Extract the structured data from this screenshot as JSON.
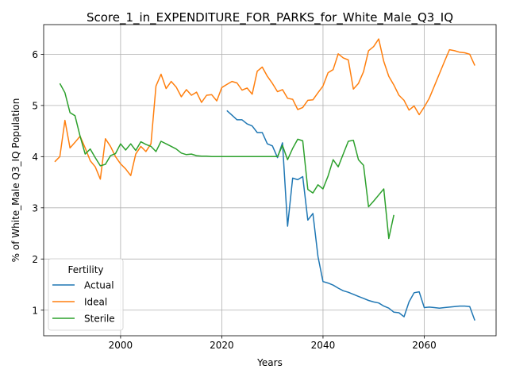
{
  "chart_data": {
    "type": "line",
    "title": "Score_1_in_EXPENDITURE_FOR_PARKS_for_White_Male_Q3_IQ",
    "xlabel": "Years",
    "ylabel": "% of White_Male Q3_IQ Population",
    "xlim": [
      1984.8,
      2074.2
    ],
    "ylim": [
      0.5,
      6.58
    ],
    "x_ticks": [
      2000,
      2020,
      2040,
      2060
    ],
    "y_ticks": [
      1,
      2,
      3,
      4,
      5,
      6
    ],
    "grid": true,
    "legend": {
      "title": "Fertility",
      "placement": "lower-left"
    },
    "series": [
      {
        "name": "Actual",
        "color": "#1f77b4",
        "x": [
          2021,
          2022,
          2023,
          2024,
          2025,
          2026,
          2027,
          2028,
          2029,
          2030,
          2031,
          2032,
          2033,
          2034,
          2035,
          2036,
          2037,
          2038,
          2039,
          2040,
          2041,
          2042,
          2043,
          2044,
          2045,
          2046,
          2047,
          2048,
          2049,
          2050,
          2051,
          2052,
          2053,
          2054,
          2055,
          2056,
          2057,
          2058,
          2059,
          2060,
          2061,
          2062,
          2063,
          2064,
          2065,
          2066,
          2067,
          2068,
          2069,
          2070
        ],
        "y": [
          4.9,
          4.81,
          4.72,
          4.72,
          4.64,
          4.6,
          4.47,
          4.47,
          4.25,
          4.21,
          3.98,
          4.27,
          2.64,
          3.58,
          3.55,
          3.61,
          2.76,
          2.89,
          2.05,
          1.56,
          1.53,
          1.49,
          1.43,
          1.38,
          1.35,
          1.31,
          1.27,
          1.23,
          1.19,
          1.16,
          1.14,
          1.08,
          1.04,
          0.96,
          0.95,
          0.87,
          1.16,
          1.34,
          1.36,
          1.05,
          1.06,
          1.05,
          1.04,
          1.05,
          1.06,
          1.07,
          1.08,
          1.08,
          1.07,
          0.8
        ]
      },
      {
        "name": "Ideal",
        "color": "#ff7f0e",
        "x": [
          1987,
          1988,
          1989,
          1990,
          1991,
          1992,
          1993,
          1994,
          1995,
          1996,
          1997,
          1998,
          1999,
          2000,
          2001,
          2002,
          2003,
          2004,
          2005,
          2006,
          2007,
          2008,
          2009,
          2010,
          2011,
          2012,
          2013,
          2014,
          2015,
          2016,
          2017,
          2018,
          2019,
          2020,
          2021,
          2022,
          2023,
          2024,
          2025,
          2026,
          2027,
          2028,
          2029,
          2030,
          2031,
          2032,
          2033,
          2034,
          2035,
          2036,
          2037,
          2038,
          2039,
          2040,
          2041,
          2042,
          2043,
          2044,
          2045,
          2046,
          2047,
          2048,
          2049,
          2050,
          2051,
          2052,
          2053,
          2054,
          2055,
          2056,
          2057,
          2058,
          2059,
          2060,
          2061,
          2062,
          2063,
          2064,
          2065,
          2066,
          2067,
          2068,
          2069,
          2070
        ],
        "y": [
          3.9,
          4.0,
          4.71,
          4.17,
          4.28,
          4.4,
          4.17,
          3.92,
          3.8,
          3.56,
          4.35,
          4.2,
          4.0,
          3.86,
          3.76,
          3.63,
          4.05,
          4.2,
          4.1,
          4.25,
          5.38,
          5.61,
          5.33,
          5.47,
          5.36,
          5.17,
          5.31,
          5.2,
          5.26,
          5.06,
          5.2,
          5.21,
          5.09,
          5.35,
          5.41,
          5.47,
          5.44,
          5.3,
          5.34,
          5.22,
          5.67,
          5.75,
          5.57,
          5.43,
          5.27,
          5.31,
          5.14,
          5.12,
          4.92,
          4.96,
          5.1,
          5.11,
          5.25,
          5.38,
          5.64,
          5.7,
          6.01,
          5.93,
          5.89,
          5.32,
          5.43,
          5.66,
          6.07,
          6.15,
          6.3,
          5.86,
          5.57,
          5.4,
          5.2,
          5.1,
          4.91,
          4.99,
          4.82,
          4.97,
          5.14,
          5.38,
          5.62,
          5.86,
          6.09,
          6.07,
          6.04,
          6.03,
          6.0,
          5.78
        ]
      },
      {
        "name": "Sterile",
        "color": "#2ca02c",
        "x": [
          1988,
          1989,
          1990,
          1991,
          1992,
          1993,
          1994,
          1995,
          1996,
          1997,
          1998,
          1999,
          2000,
          2001,
          2002,
          2003,
          2004,
          2005,
          2006,
          2007,
          2008,
          2009,
          2010,
          2011,
          2012,
          2013,
          2014,
          2015,
          2016,
          2017,
          2018,
          2019,
          2020,
          2021,
          2022,
          2023,
          2024,
          2025,
          2026,
          2027,
          2028,
          2029,
          2030,
          2031,
          2032,
          2033,
          2034,
          2035,
          2036,
          2037,
          2038,
          2039,
          2040,
          2041,
          2042,
          2043,
          2044,
          2045,
          2046,
          2047,
          2048,
          2049,
          2050,
          2051,
          2052,
          2053,
          2054
        ],
        "y": [
          5.43,
          5.25,
          4.86,
          4.8,
          4.4,
          4.05,
          4.15,
          3.98,
          3.82,
          3.85,
          4.02,
          4.06,
          4.25,
          4.13,
          4.25,
          4.12,
          4.29,
          4.24,
          4.2,
          4.1,
          4.3,
          4.25,
          4.2,
          4.15,
          4.07,
          4.04,
          4.05,
          4.02,
          4.01,
          4.01,
          4.0,
          4.0,
          4.0,
          4.0,
          4.0,
          4.0,
          4.0,
          4.0,
          4.0,
          4.0,
          4.0,
          4.0,
          4.0,
          4.0,
          4.22,
          3.94,
          4.16,
          4.34,
          4.31,
          3.36,
          3.29,
          3.45,
          3.37,
          3.62,
          3.94,
          3.8,
          4.05,
          4.3,
          4.32,
          3.94,
          3.83,
          3.02,
          3.13,
          3.25,
          3.37,
          2.4,
          2.86
        ]
      }
    ]
  }
}
